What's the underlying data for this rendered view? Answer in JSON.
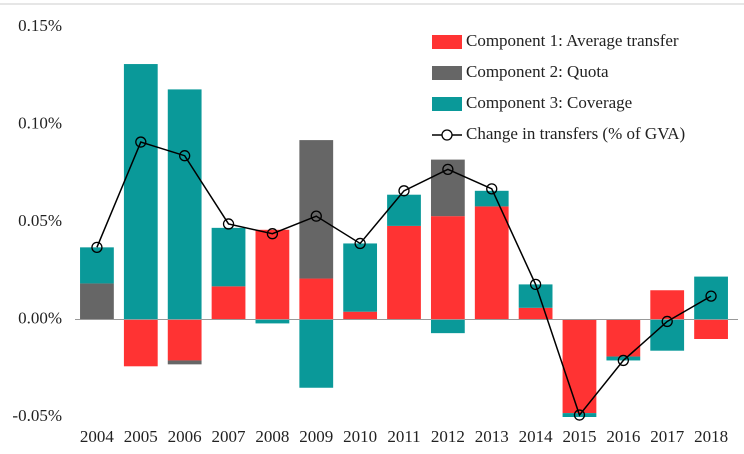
{
  "chart_data": {
    "type": "bar",
    "stacked": true,
    "categories": [
      "2004",
      "2005",
      "2006",
      "2007",
      "2008",
      "2009",
      "2010",
      "2011",
      "2012",
      "2013",
      "2014",
      "2015",
      "2016",
      "2017",
      "2018"
    ],
    "series": [
      {
        "name": "Component 1: Average transfer",
        "color": "#ff3333",
        "values": [
          0,
          -0.024,
          -0.021,
          0.017,
          0.046,
          0.021,
          0.004,
          0.048,
          0.053,
          0.058,
          0.006,
          -0.048,
          -0.019,
          0.015,
          -0.01
        ]
      },
      {
        "name": "Component 2: Quota",
        "color": "#666666",
        "values": [
          0.0185,
          0,
          -0.002,
          0,
          0,
          0.071,
          0,
          0,
          0.029,
          0,
          0,
          0,
          0,
          0,
          0
        ]
      },
      {
        "name": "Component 3: Coverage",
        "color": "#0a9999",
        "values": [
          0.0185,
          0.131,
          0.118,
          0.03,
          -0.002,
          -0.035,
          0.035,
          0.016,
          -0.007,
          0.008,
          0.012,
          -0.002,
          -0.002,
          -0.016,
          0.022
        ]
      },
      {
        "name": "Change in transfers (% of GVA)",
        "type": "line",
        "color": "#000000",
        "values": [
          0.037,
          0.091,
          0.084,
          0.049,
          0.044,
          0.053,
          0.039,
          0.066,
          0.077,
          0.067,
          0.018,
          -0.049,
          -0.021,
          -0.001,
          0.012
        ]
      }
    ],
    "ylim": [
      -0.05,
      0.15
    ],
    "yticks": [
      {
        "value": -0.05,
        "label": "-0.05%"
      },
      {
        "value": 0,
        "label": "0.00%"
      },
      {
        "value": 0.05,
        "label": "0.05%"
      },
      {
        "value": 0.1,
        "label": "0.10%"
      },
      {
        "value": 0.15,
        "label": "0.15%"
      }
    ],
    "legend": "upper right"
  }
}
